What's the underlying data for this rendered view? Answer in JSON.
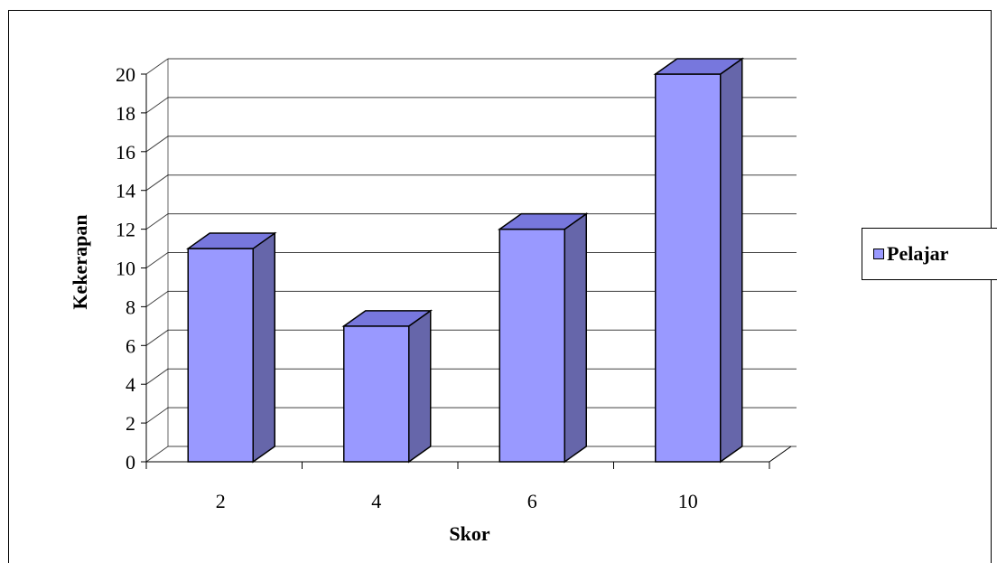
{
  "chart_data": {
    "type": "bar",
    "three_d": true,
    "categories": [
      "2",
      "4",
      "6",
      "10"
    ],
    "series": [
      {
        "name": "Pelajar",
        "values": [
          11,
          7,
          12,
          20
        ]
      }
    ],
    "xlabel": "Skor",
    "ylabel": "Kekerapan",
    "ylim": [
      0,
      20
    ],
    "yticks": [
      "0",
      "2",
      "4",
      "6",
      "8",
      "10",
      "12",
      "14",
      "16",
      "18",
      "20"
    ],
    "grid": true,
    "legend_position": "right",
    "colors": {
      "bar_front": "#9999ff",
      "bar_side": "#6666aa",
      "bar_top": "#7777dd",
      "grid": "#000000"
    }
  }
}
